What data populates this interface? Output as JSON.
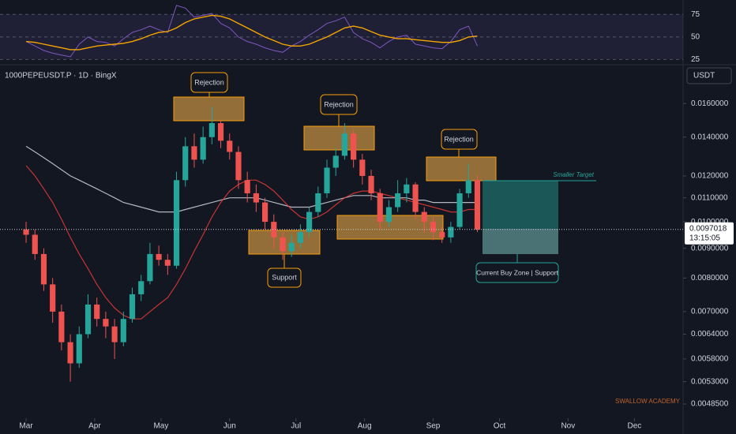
{
  "chart_data": [
    {
      "type": "candlestick",
      "title": "1000PEPEUSDT.P · 1D · BingX",
      "currency": "USDT",
      "x": [
        0,
        4,
        8,
        12,
        16,
        20,
        24,
        28,
        32,
        36,
        40,
        44,
        48,
        52,
        56,
        60,
        64,
        68,
        72,
        76,
        80,
        84,
        88,
        92,
        96,
        100,
        104,
        108,
        112,
        116,
        120,
        124,
        128,
        132,
        136,
        140,
        144,
        148,
        152,
        156,
        160,
        164,
        168,
        172,
        176,
        180,
        184,
        188,
        192,
        196,
        200,
        204
      ],
      "open": [
        0.0097,
        0.0095,
        0.0088,
        0.0078,
        0.007,
        0.0062,
        0.0057,
        0.0064,
        0.0072,
        0.0068,
        0.0066,
        0.0062,
        0.0068,
        0.0075,
        0.0079,
        0.0088,
        0.0086,
        0.0084,
        0.0118,
        0.0135,
        0.0128,
        0.014,
        0.0148,
        0.0138,
        0.0132,
        0.0118,
        0.0112,
        0.0108,
        0.01,
        0.0094,
        0.0089,
        0.0092,
        0.0096,
        0.0104,
        0.0112,
        0.0124,
        0.013,
        0.0142,
        0.0128,
        0.012,
        0.0112,
        0.01,
        0.0106,
        0.0112,
        0.0116,
        0.0104,
        0.01,
        0.0096,
        0.0094,
        0.0098,
        0.0112,
        0.0118
      ],
      "high": [
        0.01,
        0.0097,
        0.009,
        0.008,
        0.0072,
        0.0064,
        0.0066,
        0.0075,
        0.0074,
        0.007,
        0.0068,
        0.007,
        0.0077,
        0.0081,
        0.0092,
        0.0091,
        0.0088,
        0.0122,
        0.014,
        0.0142,
        0.0146,
        0.0158,
        0.015,
        0.0142,
        0.0135,
        0.0122,
        0.0116,
        0.011,
        0.0103,
        0.0096,
        0.0095,
        0.0099,
        0.0106,
        0.0115,
        0.0128,
        0.0134,
        0.0148,
        0.0144,
        0.0131,
        0.0123,
        0.0114,
        0.0109,
        0.0118,
        0.0119,
        0.0117,
        0.0106,
        0.0102,
        0.0098,
        0.01,
        0.0114,
        0.0126,
        0.012
      ],
      "low": [
        0.0092,
        0.0086,
        0.0076,
        0.0067,
        0.006,
        0.0053,
        0.0056,
        0.0063,
        0.0066,
        0.0063,
        0.0058,
        0.0061,
        0.0067,
        0.0073,
        0.0078,
        0.0084,
        0.0081,
        0.0083,
        0.0115,
        0.0124,
        0.0126,
        0.0136,
        0.0134,
        0.0128,
        0.0114,
        0.0108,
        0.0104,
        0.0097,
        0.009,
        0.0086,
        0.0087,
        0.009,
        0.0094,
        0.0102,
        0.011,
        0.012,
        0.0128,
        0.0124,
        0.0116,
        0.0109,
        0.0097,
        0.0098,
        0.0104,
        0.0108,
        0.0101,
        0.0096,
        0.0093,
        0.0092,
        0.0092,
        0.0097,
        0.011,
        0.0096
      ],
      "close": [
        0.0095,
        0.0088,
        0.0078,
        0.007,
        0.0062,
        0.0057,
        0.0064,
        0.0072,
        0.0068,
        0.0066,
        0.0062,
        0.0068,
        0.0075,
        0.0079,
        0.0088,
        0.0086,
        0.0084,
        0.0118,
        0.0135,
        0.0128,
        0.014,
        0.0148,
        0.0138,
        0.0132,
        0.0118,
        0.0112,
        0.0108,
        0.01,
        0.0094,
        0.0089,
        0.0092,
        0.0096,
        0.0104,
        0.0112,
        0.0124,
        0.013,
        0.0142,
        0.0128,
        0.012,
        0.0112,
        0.01,
        0.0106,
        0.0112,
        0.0116,
        0.0104,
        0.01,
        0.0096,
        0.0094,
        0.0098,
        0.0112,
        0.0118,
        0.0097018
      ],
      "up_color": "#26a69a",
      "down_color": "#ef5350",
      "lines": [
        {
          "color": "#d1d4dc",
          "values": [
            0.0135,
            0.0132,
            0.0129,
            0.0126,
            0.0123,
            0.012,
            0.0118,
            0.0116,
            0.0114,
            0.0112,
            0.011,
            0.0108,
            0.0107,
            0.0106,
            0.0105,
            0.0104,
            0.0104,
            0.0104,
            0.0105,
            0.0106,
            0.0107,
            0.0108,
            0.0109,
            0.011,
            0.011,
            0.011,
            0.011,
            0.0109,
            0.0108,
            0.0107,
            0.0106,
            0.0106,
            0.0106,
            0.0107,
            0.0108,
            0.0109,
            0.011,
            0.0111,
            0.0111,
            0.0111,
            0.011,
            0.011,
            0.011,
            0.011,
            0.0109,
            0.0109,
            0.0108,
            0.0108,
            0.0108,
            0.0108,
            0.0108,
            0.0108
          ]
        },
        {
          "color": "#e53935",
          "values": [
            0.0125,
            0.012,
            0.0114,
            0.0108,
            0.0101,
            0.0094,
            0.0088,
            0.0083,
            0.0078,
            0.0074,
            0.0071,
            0.0069,
            0.0068,
            0.0068,
            0.007,
            0.0072,
            0.0074,
            0.0078,
            0.0083,
            0.0089,
            0.0095,
            0.0102,
            0.0108,
            0.0113,
            0.0116,
            0.0118,
            0.0118,
            0.0116,
            0.0113,
            0.0109,
            0.0105,
            0.0102,
            0.0101,
            0.0102,
            0.0104,
            0.0107,
            0.011,
            0.0112,
            0.0113,
            0.0113,
            0.0112,
            0.0111,
            0.011,
            0.0109,
            0.0108,
            0.0107,
            0.0106,
            0.0105,
            0.0104,
            0.0104,
            0.0105,
            0.0105
          ]
        }
      ],
      "log": true,
      "ylim": [
        0.004584,
        0.01849
      ],
      "yticks": [
        {
          "value": 0.016,
          "label": "0.0160000"
        },
        {
          "value": 0.014,
          "label": "0.0140000"
        },
        {
          "value": 0.012,
          "label": "0.0120000"
        },
        {
          "value": 0.011,
          "label": "0.0110000"
        },
        {
          "value": 0.01,
          "label": "0.0100000"
        },
        {
          "value": 0.009,
          "label": "0.0090000"
        },
        {
          "value": 0.008,
          "label": "0.0080000"
        },
        {
          "value": 0.007,
          "label": "0.0070000"
        },
        {
          "value": 0.0064,
          "label": "0.0064000"
        },
        {
          "value": 0.0058,
          "label": "0.0058000"
        },
        {
          "value": 0.0053,
          "label": "0.0053000"
        },
        {
          "value": 0.00485,
          "label": "0.0048500"
        }
      ],
      "xlim": [
        -11.8,
        297
      ],
      "xticks": [
        {
          "value": 0,
          "label": "Mar"
        },
        {
          "value": 31,
          "label": "Apr"
        },
        {
          "value": 61,
          "label": "May"
        },
        {
          "value": 92,
          "label": "Jun"
        },
        {
          "value": 122,
          "label": "Jul"
        },
        {
          "value": 153,
          "label": "Aug"
        },
        {
          "value": 184,
          "label": "Sep"
        },
        {
          "value": 214,
          "label": "Oct"
        },
        {
          "value": 245,
          "label": "Nov"
        },
        {
          "value": 275,
          "label": "Dec"
        }
      ],
      "last_price": 0.0097018,
      "countdown": "13:15:05",
      "annotations": [
        "Rejection",
        "Rejection",
        "Rejection",
        "Support",
        "Smaller Target",
        "Current Buy Zone | Support",
        "SWALLOW ACADEMY"
      ]
    },
    {
      "type": "line",
      "x": [
        0,
        4,
        8,
        12,
        16,
        20,
        24,
        28,
        32,
        36,
        40,
        44,
        48,
        52,
        56,
        60,
        64,
        68,
        72,
        76,
        80,
        84,
        88,
        92,
        96,
        100,
        104,
        108,
        112,
        116,
        120,
        124,
        128,
        132,
        136,
        140,
        144,
        148,
        152,
        156,
        160,
        164,
        168,
        172,
        176,
        180,
        184,
        188,
        192,
        196,
        200,
        204
      ],
      "series": [
        {
          "color": "#7e57c2",
          "values": [
            45,
            40,
            35,
            32,
            30,
            28,
            42,
            50,
            45,
            44,
            40,
            48,
            55,
            58,
            62,
            58,
            55,
            85,
            82,
            72,
            74,
            76,
            65,
            60,
            50,
            45,
            42,
            38,
            35,
            33,
            40,
            45,
            52,
            58,
            65,
            68,
            72,
            55,
            48,
            44,
            38,
            45,
            50,
            52,
            42,
            40,
            38,
            37,
            45,
            58,
            62,
            40
          ]
        },
        {
          "color": "#f7a600",
          "values": [
            45,
            44,
            42,
            40,
            38,
            36,
            36,
            38,
            40,
            41,
            42,
            43,
            45,
            48,
            52,
            55,
            56,
            60,
            66,
            70,
            72,
            74,
            73,
            70,
            65,
            60,
            55,
            50,
            46,
            42,
            40,
            40,
            42,
            46,
            50,
            55,
            60,
            62,
            60,
            56,
            52,
            50,
            48,
            48,
            47,
            46,
            45,
            44,
            44,
            46,
            50,
            51
          ]
        }
      ],
      "ylim": [
        21,
        91
      ],
      "yticks": [
        25,
        50,
        75
      ]
    }
  ]
}
